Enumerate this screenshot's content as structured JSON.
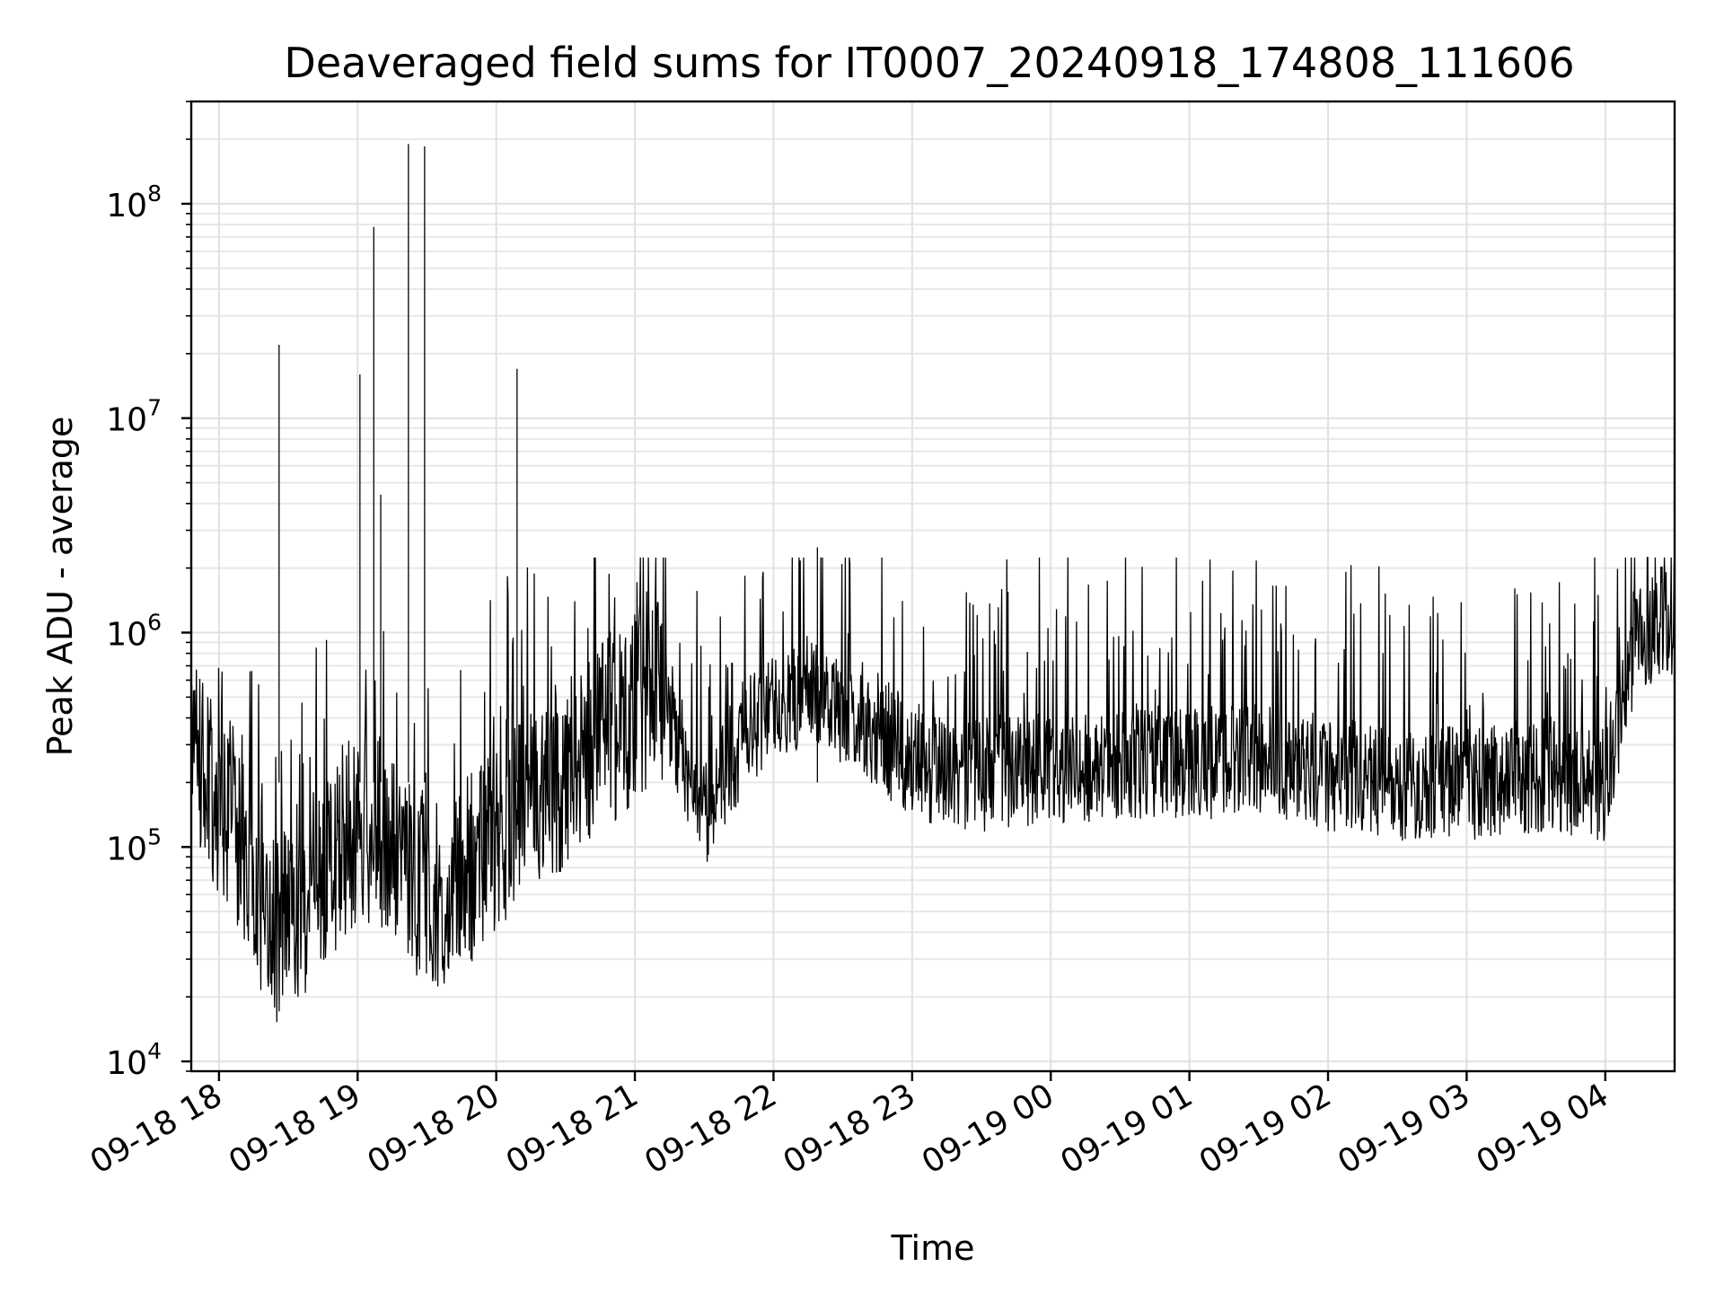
{
  "chart_data": {
    "type": "line",
    "title": "Deaveraged field sums for IT0007_20240918_174808_111606",
    "xlabel": "Time",
    "ylabel": "Peak ADU - average",
    "y_scale": "log",
    "ylim": [
      9000,
      300000000
    ],
    "xlim": [
      "2024-09-18 17:48",
      "2024-09-19 04:30"
    ],
    "x_ticks": [
      "09-18 18",
      "09-18 19",
      "09-18 20",
      "09-18 21",
      "09-18 22",
      "09-18 23",
      "09-19 00",
      "09-19 01",
      "09-19 02",
      "09-19 03",
      "09-19 04"
    ],
    "y_ticks": [
      {
        "value": 10000,
        "base": "10",
        "exp": "4"
      },
      {
        "value": 100000,
        "base": "10",
        "exp": "5"
      },
      {
        "value": 1000000,
        "base": "10",
        "exp": "6"
      },
      {
        "value": 10000000,
        "base": "10",
        "exp": "7"
      },
      {
        "value": 100000000,
        "base": "10",
        "exp": "8"
      }
    ],
    "grid": true,
    "legend": "none",
    "line_color": "#000000",
    "series": [
      {
        "x": [
          "2024-09-18 17:48",
          "2024-09-18 17:55",
          "2024-09-18 18:05",
          "2024-09-18 18:15",
          "2024-09-18 18:25",
          "2024-09-18 18:35",
          "2024-09-18 18:45",
          "2024-09-18 18:55",
          "2024-09-18 19:05",
          "2024-09-18 19:15",
          "2024-09-18 19:25",
          "2024-09-18 19:35",
          "2024-09-18 19:45",
          "2024-09-18 19:55",
          "2024-09-18 20:10",
          "2024-09-18 20:25",
          "2024-09-18 20:40",
          "2024-09-18 20:55",
          "2024-09-18 21:10",
          "2024-09-18 21:20",
          "2024-09-18 21:30",
          "2024-09-18 21:45",
          "2024-09-18 22:00",
          "2024-09-18 22:15",
          "2024-09-18 22:30",
          "2024-09-18 22:45",
          "2024-09-18 23:00",
          "2024-09-18 23:30",
          "2024-09-19 00:00",
          "2024-09-19 00:30",
          "2024-09-19 01:00",
          "2024-09-19 01:30",
          "2024-09-19 02:00",
          "2024-09-19 02:30",
          "2024-09-19 03:00",
          "2024-09-19 03:30",
          "2024-09-19 04:00",
          "2024-09-19 04:15",
          "2024-09-19 04:30"
        ],
        "y": [
          300000,
          200000,
          150000,
          70000,
          40000,
          50000,
          80000,
          100000,
          120000,
          100000,
          70000,
          60000,
          70000,
          100000,
          150000,
          200000,
          300000,
          400000,
          600000,
          300000,
          130000,
          300000,
          500000,
          550000,
          450000,
          350000,
          250000,
          220000,
          230000,
          250000,
          250000,
          260000,
          220000,
          200000,
          200000,
          220000,
          200000,
          1000000,
          1200000
        ]
      }
    ],
    "spikes": [
      {
        "x": "2024-09-18 18:26",
        "y": 22000000
      },
      {
        "x": "2024-09-18 19:01",
        "y": 16000000
      },
      {
        "x": "2024-09-18 19:07",
        "y": 78000000
      },
      {
        "x": "2024-09-18 19:10",
        "y": 4400000
      },
      {
        "x": "2024-09-18 19:22",
        "y": 190000000
      },
      {
        "x": "2024-09-18 19:29",
        "y": 185000000
      },
      {
        "x": "2024-09-18 20:09",
        "y": 17000000
      },
      {
        "x": "2024-09-18 22:19",
        "y": 2500000
      }
    ]
  }
}
